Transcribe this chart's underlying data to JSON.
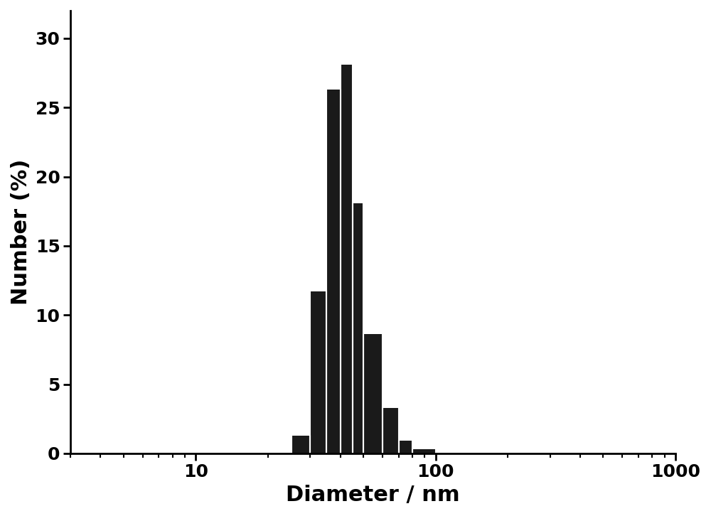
{
  "bar_left_edges": [
    25,
    30,
    35,
    40,
    45,
    50,
    60,
    70,
    80,
    100
  ],
  "bar_right_edges": [
    30,
    35,
    40,
    45,
    50,
    60,
    70,
    80,
    100,
    120
  ],
  "bar_heights": [
    1.3,
    11.7,
    26.3,
    28.1,
    18.1,
    8.6,
    3.3,
    0.9,
    0.3,
    0.0
  ],
  "bar_color": "#1a1a1a",
  "bar_edgecolor": "#ffffff",
  "bar_linewidth": 1.5,
  "xlabel": "Diameter / nm",
  "ylabel": "Number (%)",
  "xlim": [
    3,
    1000
  ],
  "ylim": [
    0,
    32
  ],
  "yticks": [
    0,
    5,
    10,
    15,
    20,
    25,
    30
  ],
  "background_color": "#ffffff",
  "xlabel_fontsize": 22,
  "ylabel_fontsize": 22,
  "tick_fontsize": 18,
  "tick_label_fontweight": "bold",
  "axis_linewidth": 2.0
}
